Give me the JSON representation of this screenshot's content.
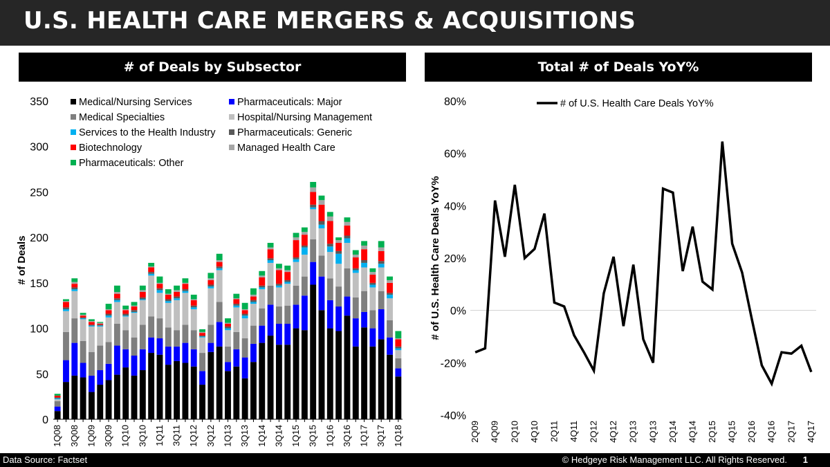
{
  "title": "U.S. HEALTH CARE MERGERS & ACQUISITIONS",
  "footer": {
    "source": "Data Source: Factset",
    "copyright": "© Hedgeye Risk Management LLC. All Rights Reserved.",
    "page": "1"
  },
  "chart_data": [
    {
      "type": "bar",
      "stacked": true,
      "title": "# of Deals by Subsector",
      "ylabel": "# of Deals",
      "xlabel": "",
      "ylim": [
        0,
        350
      ],
      "yticks": [
        0,
        50,
        100,
        150,
        200,
        250,
        300,
        350
      ],
      "legend_position": "top",
      "categories": [
        "1Q08",
        "2Q08",
        "3Q08",
        "4Q08",
        "1Q09",
        "2Q09",
        "3Q09",
        "4Q09",
        "1Q10",
        "2Q10",
        "3Q10",
        "4Q10",
        "1Q11",
        "2Q11",
        "3Q11",
        "4Q11",
        "1Q12",
        "2Q12",
        "3Q12",
        "4Q12",
        "1Q13",
        "2Q13",
        "3Q13",
        "4Q13",
        "1Q14",
        "2Q14",
        "3Q14",
        "4Q14",
        "1Q15",
        "2Q15",
        "3Q15",
        "4Q15",
        "1Q16",
        "2Q16",
        "3Q16",
        "4Q16",
        "1Q17",
        "2Q17",
        "3Q17",
        "4Q17",
        "1Q18"
      ],
      "x_tick_labels": [
        "1Q08",
        "3Q08",
        "1Q09",
        "3Q09",
        "1Q10",
        "3Q10",
        "1Q11",
        "3Q11",
        "1Q12",
        "3Q12",
        "1Q13",
        "3Q13",
        "1Q14",
        "3Q14",
        "1Q15",
        "3Q15",
        "1Q16",
        "3Q16",
        "1Q17",
        "3Q17",
        "1Q18"
      ],
      "series": [
        {
          "name": "Medical/Nursing Services",
          "color": "#000000",
          "values": [
            9,
            41,
            48,
            46,
            30,
            38,
            43,
            49,
            57,
            48,
            54,
            73,
            71,
            60,
            64,
            62,
            58,
            38,
            74,
            80,
            53,
            58,
            45,
            63,
            84,
            92,
            82,
            82,
            100,
            98,
            148,
            120,
            100,
            97,
            114,
            80,
            101,
            80,
            88,
            71,
            47
          ]
        },
        {
          "name": "Pharmaceuticals: Major",
          "color": "#0000ff",
          "values": [
            5,
            24,
            36,
            16,
            18,
            16,
            18,
            32,
            20,
            22,
            23,
            17,
            18,
            20,
            16,
            22,
            19,
            15,
            10,
            27,
            10,
            19,
            23,
            20,
            19,
            34,
            23,
            23,
            26,
            38,
            25,
            37,
            31,
            27,
            21,
            31,
            17,
            20,
            33,
            19,
            9
          ]
        },
        {
          "name": "Medical Specialties",
          "color": "#7f7f7f",
          "values": [
            6,
            31,
            27,
            24,
            26,
            27,
            24,
            24,
            21,
            20,
            27,
            23,
            22,
            21,
            18,
            20,
            21,
            20,
            20,
            22,
            17,
            19,
            21,
            20,
            19,
            21,
            19,
            20,
            21,
            21,
            25,
            23,
            24,
            22,
            31,
            23,
            23,
            20,
            20,
            19,
            11
          ]
        },
        {
          "name": "Hospital/Nursing Management",
          "color": "#bfbfbf",
          "values": [
            2,
            23,
            30,
            24,
            28,
            21,
            27,
            24,
            15,
            27,
            27,
            45,
            28,
            27,
            33,
            35,
            23,
            17,
            40,
            35,
            18,
            27,
            22,
            24,
            21,
            25,
            21,
            24,
            26,
            24,
            33,
            30,
            29,
            25,
            28,
            27,
            26,
            25,
            26,
            24,
            9
          ]
        },
        {
          "name": "Services to the Health Industry",
          "color": "#00b0f0",
          "values": [
            1,
            2,
            2,
            1,
            1,
            1,
            2,
            2,
            1,
            1,
            1,
            2,
            3,
            2,
            2,
            2,
            2,
            1,
            2,
            2,
            2,
            2,
            3,
            2,
            2,
            3,
            2,
            2,
            3,
            8,
            2,
            4,
            6,
            11,
            5,
            3,
            5,
            3,
            4,
            4,
            2
          ]
        },
        {
          "name": "Pharmaceuticals: Generic",
          "color": "#595959",
          "values": [
            1,
            2,
            2,
            1,
            1,
            1,
            2,
            2,
            2,
            2,
            2,
            2,
            2,
            2,
            2,
            2,
            2,
            1,
            2,
            2,
            2,
            2,
            2,
            2,
            2,
            2,
            2,
            2,
            2,
            2,
            3,
            4,
            3,
            3,
            3,
            2,
            3,
            2,
            3,
            2,
            2
          ]
        },
        {
          "name": "Biotechnology",
          "color": "#ff0000",
          "values": [
            2,
            6,
            4,
            2,
            3,
            1,
            4,
            5,
            4,
            4,
            6,
            5,
            5,
            5,
            5,
            6,
            6,
            3,
            5,
            5,
            3,
            5,
            4,
            4,
            9,
            10,
            15,
            9,
            19,
            12,
            14,
            18,
            25,
            9,
            11,
            12,
            12,
            9,
            11,
            11,
            8
          ]
        },
        {
          "name": "Managed Health Care",
          "color": "#a6a6a6",
          "values": [
            0,
            1,
            2,
            1,
            1,
            1,
            1,
            2,
            1,
            1,
            2,
            1,
            1,
            1,
            2,
            1,
            1,
            1,
            2,
            2,
            1,
            1,
            1,
            2,
            2,
            2,
            2,
            2,
            3,
            3,
            5,
            5,
            5,
            3,
            4,
            3,
            4,
            3,
            4,
            3,
            1
          ]
        },
        {
          "name": "Pharmaceuticals: Other",
          "color": "#00b050",
          "values": [
            2,
            2,
            4,
            2,
            2,
            1,
            6,
            7,
            4,
            4,
            5,
            4,
            7,
            5,
            5,
            5,
            5,
            3,
            6,
            7,
            5,
            5,
            7,
            7,
            5,
            5,
            5,
            5,
            5,
            5,
            6,
            5,
            5,
            3,
            5,
            5,
            5,
            4,
            7,
            4,
            8
          ]
        }
      ]
    },
    {
      "type": "line",
      "title": "Total # of Deals YoY%",
      "ylabel": "# of U.S. Health Care Deals YoY%",
      "xlabel": "",
      "ylim": [
        -40,
        80
      ],
      "yticks": [
        -40,
        -20,
        0,
        20,
        40,
        60,
        80
      ],
      "y_tick_labels": [
        "-40%",
        "-20%",
        "0%",
        "20%",
        "40%",
        "60%",
        "80%"
      ],
      "legend_position": "top",
      "categories": [
        "2Q09",
        "3Q09",
        "4Q09",
        "1Q10",
        "2Q10",
        "3Q10",
        "4Q10",
        "1Q11",
        "2Q11",
        "3Q11",
        "4Q11",
        "1Q12",
        "2Q12",
        "3Q12",
        "4Q12",
        "1Q13",
        "2Q13",
        "3Q13",
        "4Q13",
        "1Q14",
        "2Q14",
        "3Q14",
        "4Q14",
        "1Q15",
        "2Q15",
        "3Q15",
        "4Q15",
        "1Q16",
        "2Q16",
        "3Q16",
        "4Q16",
        "1Q17",
        "2Q17",
        "3Q17",
        "4Q17"
      ],
      "x_tick_labels": [
        "2Q09",
        "4Q09",
        "2Q10",
        "4Q10",
        "2Q11",
        "4Q11",
        "2Q12",
        "4Q12",
        "2Q13",
        "4Q13",
        "2Q14",
        "4Q14",
        "2Q15",
        "4Q15",
        "2Q16",
        "4Q16",
        "2Q17",
        "4Q17"
      ],
      "series": [
        {
          "name": "# of U.S. Health Care Deals YoY%",
          "color": "#000000",
          "values": [
            -16,
            -14.5,
            42,
            20.5,
            48,
            20,
            23.5,
            37,
            3,
            1.5,
            -9.5,
            -16,
            -23,
            6.5,
            20.5,
            -6,
            17.5,
            -11,
            -20,
            46.5,
            45,
            15,
            32,
            11,
            8,
            64.5,
            25.5,
            14.5,
            -3.5,
            -21,
            -28,
            -16,
            -16.5,
            -13.5,
            -23.5
          ]
        }
      ]
    }
  ]
}
